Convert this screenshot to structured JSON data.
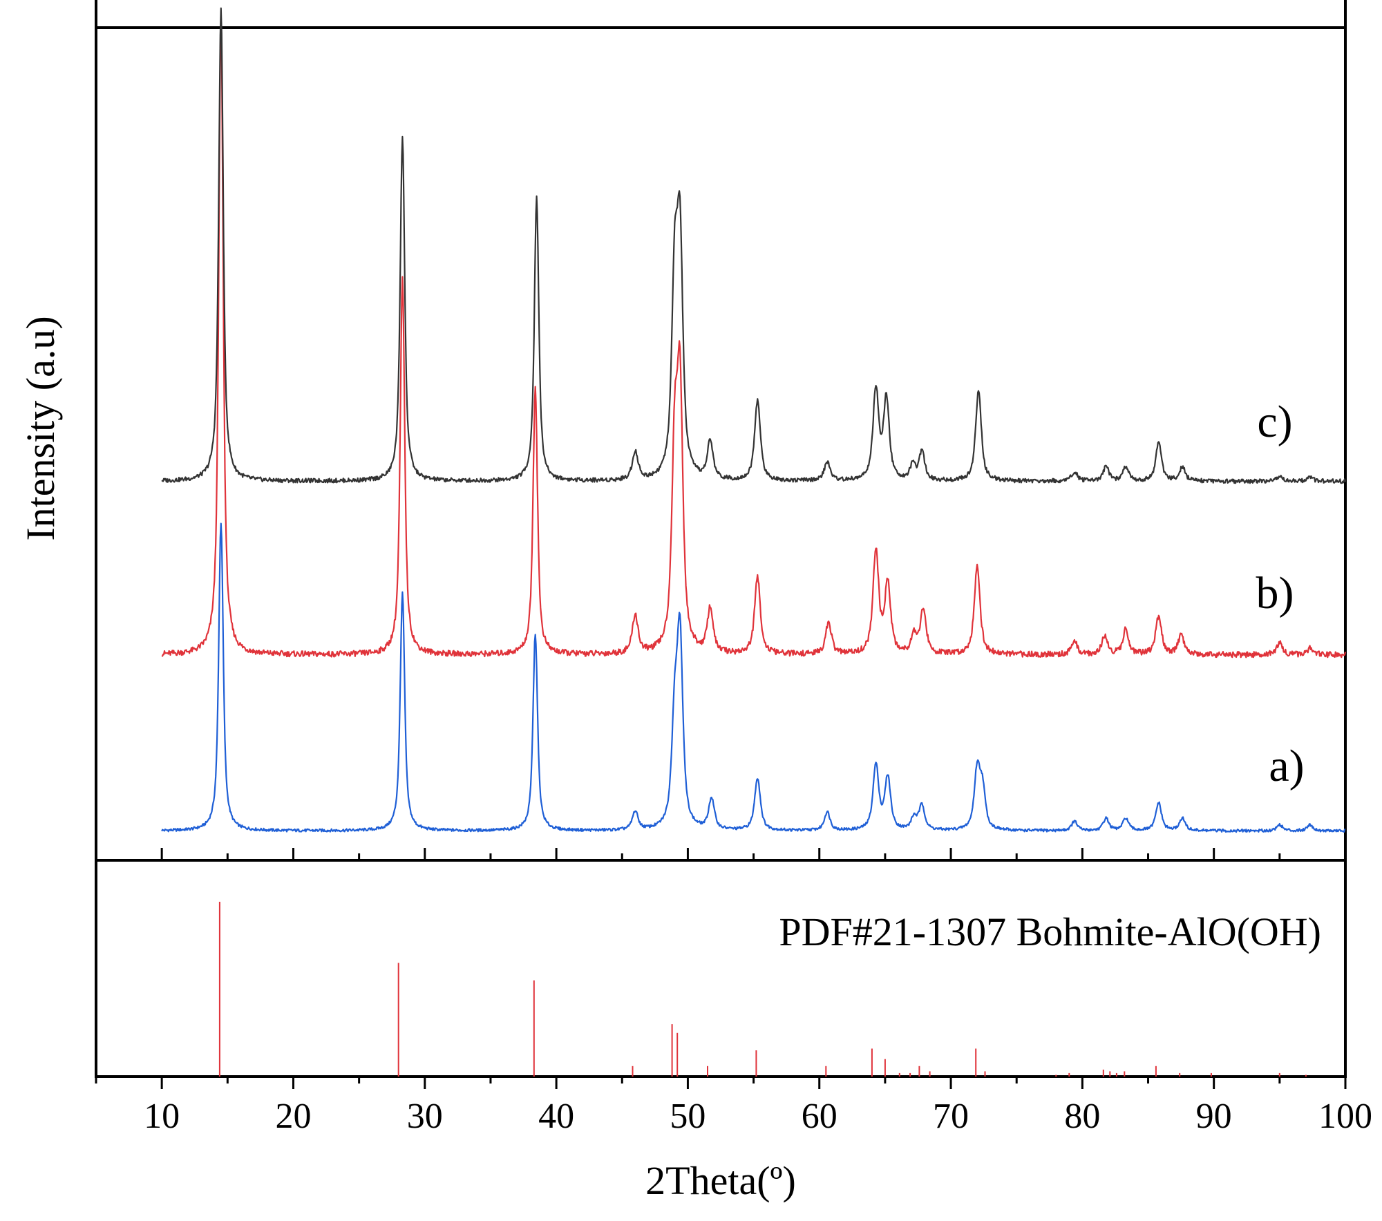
{
  "chart_data": {
    "type": "line",
    "xlabel": "2Theta(º)",
    "ylabel": "Intensity (a.u)",
    "xlim": [
      5,
      100
    ],
    "x_ticks": [
      "10",
      "20",
      "30",
      "40",
      "50",
      "60",
      "70",
      "80",
      "90",
      "100"
    ],
    "y_ticks_shown": false,
    "grid": false,
    "colors": {
      "a": "#1f5fd6",
      "b": "#e0333a",
      "c": "#333333",
      "reference": "#e0333a",
      "axes": "#000000"
    },
    "series": [
      {
        "name": "a)",
        "peaks": [
          [
            14.5,
            100
          ],
          [
            28.3,
            77
          ],
          [
            38.4,
            64
          ],
          [
            46.0,
            6
          ],
          [
            49.0,
            34
          ],
          [
            49.4,
            61
          ],
          [
            51.8,
            10
          ],
          [
            55.3,
            17
          ],
          [
            60.6,
            6
          ],
          [
            64.3,
            21
          ],
          [
            65.2,
            17
          ],
          [
            67.2,
            4
          ],
          [
            67.8,
            8
          ],
          [
            72.0,
            19
          ],
          [
            72.4,
            13
          ],
          [
            79.4,
            3
          ],
          [
            81.8,
            4
          ],
          [
            83.3,
            4
          ],
          [
            85.8,
            9
          ],
          [
            87.6,
            4
          ],
          [
            95.0,
            2
          ],
          [
            97.3,
            2
          ]
        ]
      },
      {
        "name": "b)",
        "peaks": [
          [
            14.5,
            100
          ],
          [
            28.3,
            59
          ],
          [
            38.4,
            42
          ],
          [
            46.0,
            6
          ],
          [
            49.0,
            30
          ],
          [
            49.4,
            40
          ],
          [
            51.7,
            7
          ],
          [
            55.3,
            12
          ],
          [
            60.7,
            5
          ],
          [
            64.3,
            16
          ],
          [
            65.2,
            11
          ],
          [
            67.2,
            3
          ],
          [
            67.9,
            7
          ],
          [
            72.0,
            14
          ],
          [
            79.4,
            2
          ],
          [
            81.7,
            3
          ],
          [
            83.3,
            4
          ],
          [
            85.8,
            6
          ],
          [
            87.5,
            3
          ],
          [
            95.0,
            2
          ],
          [
            97.3,
            1
          ]
        ]
      },
      {
        "name": "c)",
        "peaks": [
          [
            14.5,
            100
          ],
          [
            28.3,
            73
          ],
          [
            38.5,
            60
          ],
          [
            46.0,
            6
          ],
          [
            49.0,
            41
          ],
          [
            49.4,
            49
          ],
          [
            51.7,
            8
          ],
          [
            55.3,
            17
          ],
          [
            60.6,
            4
          ],
          [
            64.3,
            19
          ],
          [
            65.1,
            17
          ],
          [
            67.1,
            3
          ],
          [
            67.8,
            6
          ],
          [
            72.1,
            19
          ],
          [
            79.4,
            2
          ],
          [
            81.8,
            3
          ],
          [
            83.3,
            3
          ],
          [
            85.8,
            8
          ],
          [
            87.6,
            3
          ],
          [
            95.0,
            1
          ],
          [
            97.3,
            1
          ]
        ]
      }
    ],
    "reference": {
      "label": "PDF#21-1307 Bohmite-AlO(OH)",
      "lines": [
        [
          14.4,
          100
        ],
        [
          28.0,
          65
        ],
        [
          38.3,
          55
        ],
        [
          45.8,
          6
        ],
        [
          48.8,
          30
        ],
        [
          49.2,
          25
        ],
        [
          51.5,
          6
        ],
        [
          55.2,
          15
        ],
        [
          60.5,
          6
        ],
        [
          64.0,
          16
        ],
        [
          65.0,
          10
        ],
        [
          66.1,
          2
        ],
        [
          66.9,
          2
        ],
        [
          67.6,
          6
        ],
        [
          68.4,
          3
        ],
        [
          71.9,
          16
        ],
        [
          72.6,
          3
        ],
        [
          78.0,
          1
        ],
        [
          79.0,
          2
        ],
        [
          81.6,
          4
        ],
        [
          82.1,
          3
        ],
        [
          82.6,
          2
        ],
        [
          83.2,
          3
        ],
        [
          85.6,
          6
        ],
        [
          87.4,
          2
        ],
        [
          89.8,
          2
        ],
        [
          95.0,
          2
        ],
        [
          97.0,
          1
        ]
      ]
    }
  }
}
